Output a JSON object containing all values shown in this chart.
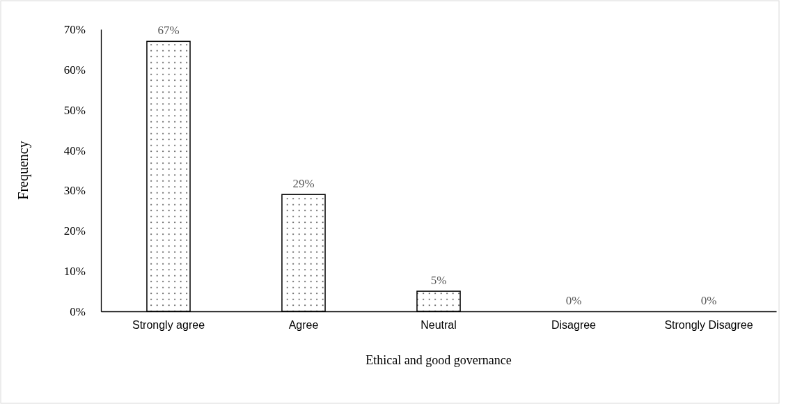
{
  "chart_data": {
    "type": "bar",
    "xlabel": "Ethical and good governance",
    "ylabel": "Frequency",
    "categories": [
      "Strongly agree",
      "Agree",
      "Neutral",
      "Disagree",
      "Strongly Disagree"
    ],
    "values": [
      67,
      29,
      5,
      0,
      0
    ],
    "value_labels": [
      "67%",
      "29%",
      "5%",
      "0%",
      "0%"
    ],
    "color": "#000000",
    "ylim": [
      0,
      70
    ],
    "yticks": [
      {
        "value": 0,
        "label": "0%"
      },
      {
        "value": 10,
        "label": "10%"
      },
      {
        "value": 20,
        "label": "20%"
      },
      {
        "value": 30,
        "label": "30%"
      },
      {
        "value": 40,
        "label": "40%"
      },
      {
        "value": 50,
        "label": "50%"
      },
      {
        "value": 60,
        "label": "60%"
      },
      {
        "value": 70,
        "label": "70%"
      }
    ],
    "grid": false
  }
}
